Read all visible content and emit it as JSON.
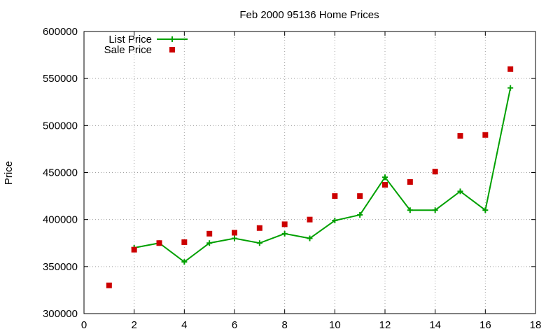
{
  "chart_data": {
    "type": "line",
    "title": "Feb 2000 95136 Home Prices",
    "xlabel": "",
    "ylabel": "Price",
    "xlim": [
      0,
      18
    ],
    "ylim": [
      300000,
      600000
    ],
    "x_ticks": [
      0,
      2,
      4,
      6,
      8,
      10,
      12,
      14,
      16,
      18
    ],
    "y_ticks": [
      300000,
      350000,
      400000,
      450000,
      500000,
      550000,
      600000
    ],
    "grid": true,
    "legend_position": "top-left",
    "x": [
      1,
      2,
      3,
      4,
      5,
      6,
      7,
      8,
      9,
      10,
      11,
      12,
      13,
      14,
      15,
      16,
      17
    ],
    "series": [
      {
        "name": "List Price",
        "style": "linespoints",
        "color": "#00a000",
        "values": [
          null,
          370000,
          375000,
          355000,
          375000,
          380000,
          375000,
          385000,
          380000,
          399000,
          405000,
          445000,
          410000,
          410000,
          430000,
          410000,
          540000
        ]
      },
      {
        "name": "Sale Price",
        "style": "points",
        "color": "#cc0000",
        "values": [
          330000,
          368000,
          375000,
          376000,
          385000,
          386000,
          391000,
          395000,
          400000,
          425000,
          425000,
          437000,
          440000,
          451000,
          489000,
          490000,
          560000
        ]
      }
    ]
  }
}
